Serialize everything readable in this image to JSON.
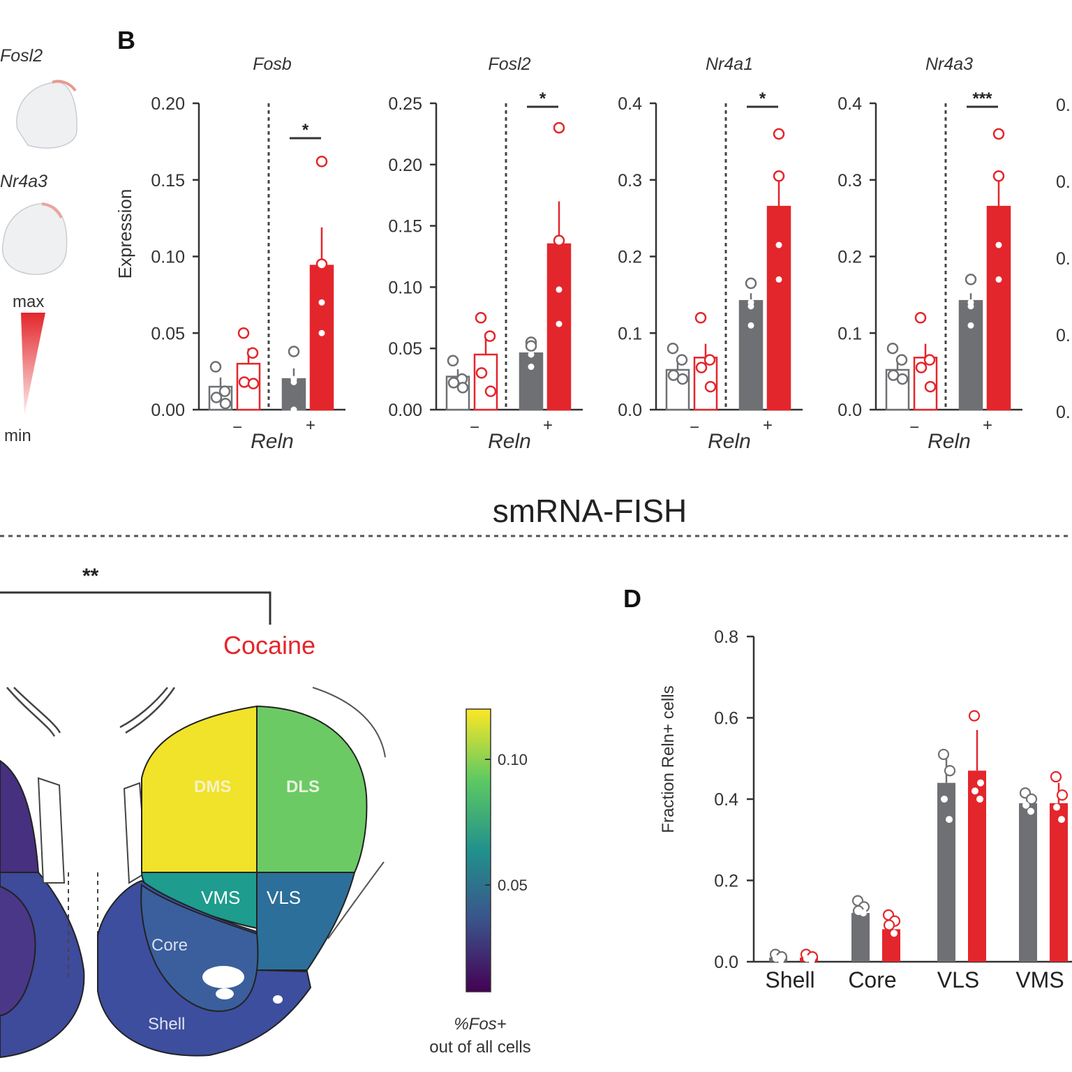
{
  "panel_b": {
    "letter": "B",
    "ylabel": "Expression",
    "xlabel": "Reln",
    "neg_label": "−",
    "pos_label": "+"
  },
  "panel_c": {
    "bracket_sig": "**",
    "cocaine_label": "Cocaine",
    "regions": {
      "dms": "DMS",
      "dls": "DLS",
      "vms": "VMS",
      "vls": "VLS",
      "core": "Core",
      "shell": "Shell"
    },
    "colorbar": {
      "tick_high": "0.10",
      "tick_low": "0.05",
      "label_line1": "%Fos+",
      "label_line2": "out of all cells"
    }
  },
  "section_title": "smRNA-FISH",
  "panel_a_fragment": {
    "gene_top": "Fosl2",
    "gene_mid": "Nr4a3",
    "scale_max": "max",
    "scale_min": "min"
  },
  "panel_d": {
    "letter": "D",
    "ylabel": "Fraction Reln+ cells"
  },
  "colors": {
    "saline": "#6f7073",
    "cocaine": "#e3262b",
    "axis": "#333333"
  },
  "chart_data": [
    {
      "type": "bar",
      "title": "Fosb",
      "xlabel": "Reln",
      "ylabel": "Expression",
      "ylim": [
        0,
        0.2
      ],
      "yticks": [
        "0.00",
        "0.05",
        "0.10",
        "0.15",
        "0.20"
      ],
      "groups": [
        "−",
        "+"
      ],
      "series": [
        {
          "group": "−",
          "condition": "saline",
          "mean": 0.015,
          "err": 0.006,
          "points": [
            0.028,
            0.012,
            0.008,
            0.004
          ]
        },
        {
          "group": "−",
          "condition": "cocaine",
          "mean": 0.03,
          "err": 0.01,
          "points": [
            0.05,
            0.037,
            0.018,
            0.017
          ]
        },
        {
          "group": "+",
          "condition": "saline",
          "mean": 0.02,
          "err": 0.007,
          "points": [
            0.038,
            0.02,
            0.018,
            0.0
          ]
        },
        {
          "group": "+",
          "condition": "cocaine",
          "mean": 0.094,
          "err": 0.025,
          "points": [
            0.162,
            0.095,
            0.07,
            0.05
          ]
        }
      ],
      "significance": "*"
    },
    {
      "type": "bar",
      "title": "Fosl2",
      "xlabel": "Reln",
      "ylim": [
        0,
        0.25
      ],
      "yticks": [
        "0.00",
        "0.05",
        "0.10",
        "0.15",
        "0.20",
        "0.25"
      ],
      "groups": [
        "−",
        "+"
      ],
      "series": [
        {
          "group": "−",
          "condition": "saline",
          "mean": 0.027,
          "err": 0.006,
          "points": [
            0.04,
            0.025,
            0.022,
            0.018
          ]
        },
        {
          "group": "−",
          "condition": "cocaine",
          "mean": 0.045,
          "err": 0.014,
          "points": [
            0.075,
            0.06,
            0.03,
            0.015
          ]
        },
        {
          "group": "+",
          "condition": "saline",
          "mean": 0.046,
          "err": 0.005,
          "points": [
            0.055,
            0.052,
            0.045,
            0.035
          ]
        },
        {
          "group": "+",
          "condition": "cocaine",
          "mean": 0.135,
          "err": 0.035,
          "points": [
            0.23,
            0.138,
            0.098,
            0.07
          ]
        }
      ],
      "significance": "*"
    },
    {
      "type": "bar",
      "title": "Nr4a1",
      "xlabel": "Reln",
      "ylim": [
        0,
        0.4
      ],
      "yticks": [
        "0.0",
        "0.1",
        "0.2",
        "0.3",
        "0.4"
      ],
      "groups": [
        "−",
        "+"
      ],
      "series": [
        {
          "group": "−",
          "condition": "saline",
          "mean": 0.052,
          "err": 0.012,
          "points": [
            0.08,
            0.065,
            0.045,
            0.04
          ]
        },
        {
          "group": "−",
          "condition": "cocaine",
          "mean": 0.068,
          "err": 0.018,
          "points": [
            0.12,
            0.065,
            0.055,
            0.03
          ]
        },
        {
          "group": "+",
          "condition": "saline",
          "mean": 0.142,
          "err": 0.01,
          "points": [
            0.165,
            0.14,
            0.135,
            0.11
          ]
        },
        {
          "group": "+",
          "condition": "cocaine",
          "mean": 0.265,
          "err": 0.04,
          "points": [
            0.36,
            0.305,
            0.215,
            0.17
          ]
        }
      ],
      "significance": "*"
    },
    {
      "type": "bar",
      "title": "Nr4a3",
      "xlabel": "Reln",
      "ylim": [
        0,
        0.4
      ],
      "yticks": [
        "0.0",
        "0.1",
        "0.2",
        "0.3",
        "0.4"
      ],
      "groups": [
        "−",
        "+"
      ],
      "series": [
        {
          "group": "−",
          "condition": "saline",
          "mean": 0.052,
          "err": 0.012,
          "points": [
            0.08,
            0.065,
            0.045,
            0.04
          ]
        },
        {
          "group": "−",
          "condition": "cocaine",
          "mean": 0.068,
          "err": 0.018,
          "points": [
            0.12,
            0.065,
            0.055,
            0.03
          ]
        },
        {
          "group": "+",
          "condition": "saline",
          "mean": 0.142,
          "err": 0.01,
          "points": [
            0.17,
            0.14,
            0.135,
            0.11
          ]
        },
        {
          "group": "+",
          "condition": "cocaine",
          "mean": 0.265,
          "err": 0.04,
          "points": [
            0.36,
            0.305,
            0.215,
            0.17
          ]
        }
      ],
      "significance": "***"
    },
    {
      "type": "bar",
      "xlabel": "",
      "ylabel": "Fraction Reln+ cells",
      "ylim": [
        0,
        0.8
      ],
      "yticks": [
        "0.0",
        "0.2",
        "0.4",
        "0.6",
        "0.8"
      ],
      "categories": [
        "Shell",
        "Core",
        "VLS",
        "VMS"
      ],
      "series": [
        {
          "condition": "saline",
          "values": [
            0.01,
            0.12,
            0.44,
            0.39
          ],
          "errors": [
            0.005,
            0.02,
            0.06,
            0.02
          ],
          "points": [
            [
              0.018,
              0.012,
              0.008,
              0.005
            ],
            [
              0.15,
              0.135,
              0.125,
              0.12
            ],
            [
              0.51,
              0.47,
              0.4,
              0.35
            ],
            [
              0.415,
              0.4,
              0.385,
              0.37
            ]
          ]
        },
        {
          "condition": "cocaine",
          "values": [
            0.01,
            0.08,
            0.47,
            0.39
          ],
          "errors": [
            0.005,
            0.03,
            0.1,
            0.05
          ],
          "points": [
            [
              0.018,
              0.012,
              0.008,
              0.004
            ],
            [
              0.115,
              0.1,
              0.09,
              0.07
            ],
            [
              0.605,
              0.44,
              0.42,
              0.4
            ],
            [
              0.455,
              0.41,
              0.38,
              0.35
            ]
          ]
        }
      ]
    }
  ]
}
